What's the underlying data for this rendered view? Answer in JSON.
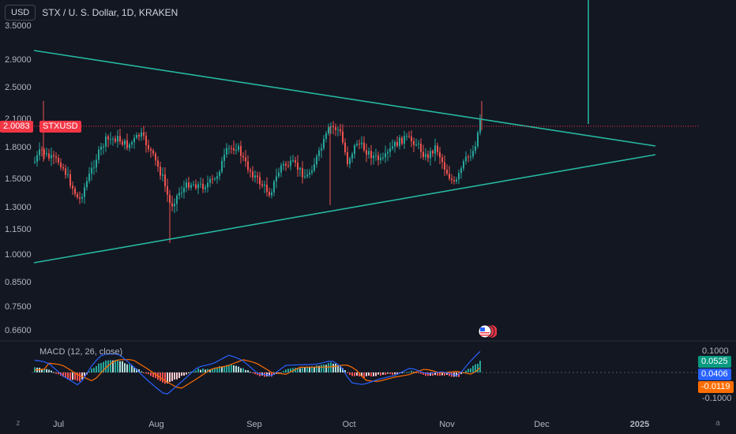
{
  "header": {
    "currency_button": "USD",
    "symbol_title": "STX / U. S. Dollar, 1D, KRAKEN"
  },
  "price_axis": {
    "ticks": [
      "3.5000",
      "2.9000",
      "2.5000",
      "2.1000",
      "1.8000",
      "1.5000",
      "1.3000",
      "1.1500",
      "1.0000",
      "0.8500",
      "0.7500",
      "0.6600"
    ]
  },
  "current_price": {
    "value": "2.0083",
    "symbol": "STXUSD",
    "color": "#f23645"
  },
  "time_axis": {
    "ticks": [
      "Jul",
      "Aug",
      "Sep",
      "Oct",
      "Nov",
      "Dec",
      "2025"
    ]
  },
  "macd": {
    "legend": "MACD (12, 26, close)",
    "axis_ticks": [
      "0.1000",
      "-0.1000"
    ],
    "histogram_value": "0.0525",
    "macd_value": "0.0406",
    "signal_value": "-0.0119",
    "histogram_color": "#089981",
    "macd_color": "#2962ff",
    "signal_color": "#ff6d00"
  },
  "colors": {
    "background": "#131722",
    "bull": "#26a69a",
    "bear": "#ef5350",
    "trendline": "#26b7a0",
    "current_price": "#f23645"
  },
  "icons": {
    "flag": "us-flag-icon",
    "left_corner": "z",
    "right_corner": "a"
  },
  "chart_data": {
    "type": "candlestick",
    "symbol": "STX / U. S. Dollar",
    "interval": "1D",
    "exchange": "KRAKEN",
    "y_scale": "log",
    "ylim": [
      0.63,
      3.6
    ],
    "x_range": [
      "2024-06-20",
      "2025-01-31"
    ],
    "annotations": [
      "symmetrical triangle trendlines",
      "current price line 2.0083"
    ],
    "series_ohlc_sample": [
      {
        "date": "2024-06-25",
        "close": 1.62
      },
      {
        "date": "2024-07-05",
        "close": 1.33
      },
      {
        "date": "2024-07-22",
        "close": 1.92
      },
      {
        "date": "2024-08-05",
        "close": 1.18
      },
      {
        "date": "2024-08-25",
        "close": 1.52
      },
      {
        "date": "2024-09-07",
        "close": 1.38
      },
      {
        "date": "2024-09-30",
        "close": 2.02
      },
      {
        "date": "2024-10-15",
        "close": 1.66
      },
      {
        "date": "2024-10-30",
        "close": 1.88
      },
      {
        "date": "2024-11-07",
        "close": 1.42
      },
      {
        "date": "2024-11-12",
        "close": 2.0083
      }
    ]
  }
}
